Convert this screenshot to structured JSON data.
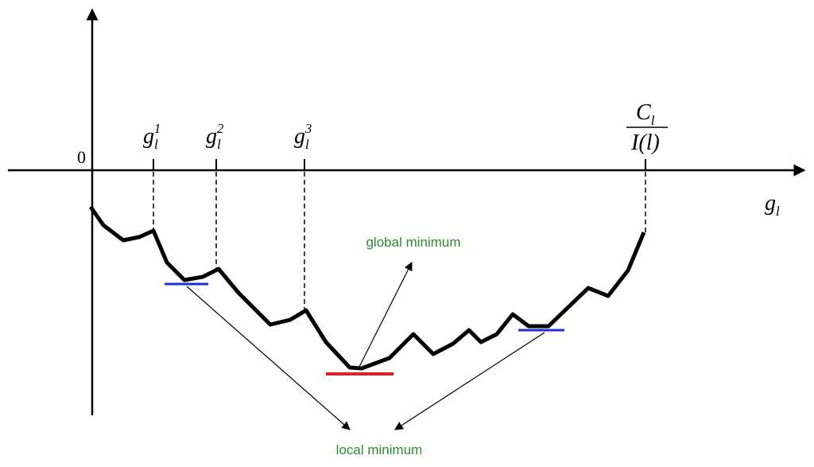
{
  "origin_label": "0",
  "axis_label": {
    "base": "g",
    "sub": "l"
  },
  "ticks": [
    {
      "base": "g",
      "sub": "l",
      "sup": "1"
    },
    {
      "base": "g",
      "sub": "l",
      "sup": "2"
    },
    {
      "base": "g",
      "sub": "l",
      "sup": "3"
    }
  ],
  "end_tick": {
    "numerator": {
      "base": "C",
      "sub": "l"
    },
    "denominator": "I(l)"
  },
  "annotations": {
    "global": "global minimum",
    "local": "local minimum"
  }
}
